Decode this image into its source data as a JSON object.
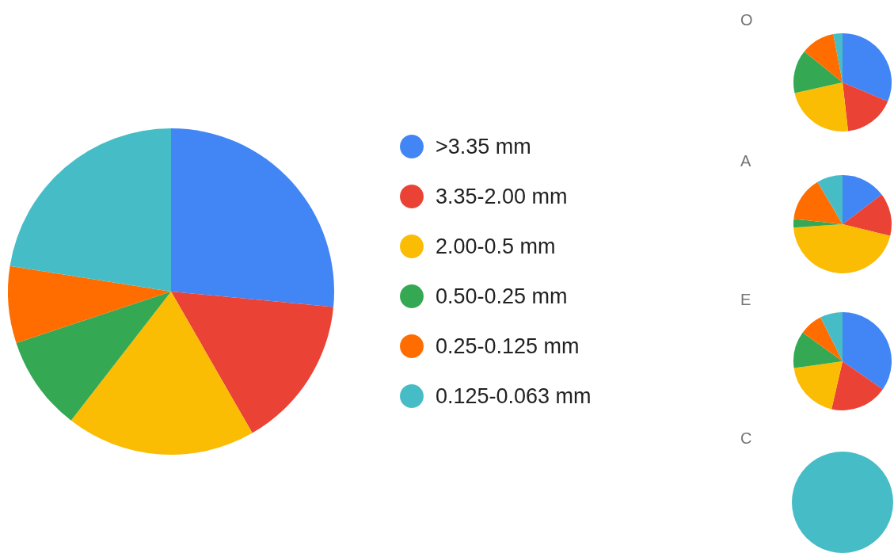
{
  "chart_data": [
    {
      "type": "pie",
      "categories": [
        ">3.35 mm",
        "3.35-2.00 mm",
        "2.00-0.5 mm",
        "0.50-0.25 mm",
        "0.25-0.125 mm",
        "0.125-0.063 mm"
      ],
      "values": [
        26.5,
        15.2,
        18.8,
        9.4,
        7.6,
        22.5
      ],
      "colors": [
        "#4285f4",
        "#ea4335",
        "#fbbc04",
        "#34a853",
        "#ff6d01",
        "#46bdc6"
      ],
      "legend": "right"
    },
    {
      "type": "pie",
      "title": "O",
      "categories": [
        null,
        null,
        null,
        null,
        null,
        null
      ],
      "values": [
        31.3,
        16.9,
        23.3,
        14.3,
        11.2,
        3.0
      ],
      "colors": [
        "#4285f4",
        "#ea4335",
        "#fbbc04",
        "#34a853",
        "#ff6d01",
        "#46bdc6"
      ]
    },
    {
      "type": "pie",
      "title": "A",
      "categories": [
        null,
        null,
        null,
        null,
        null,
        null
      ],
      "values": [
        14.7,
        14.1,
        45.1,
        2.8,
        14.8,
        8.5
      ],
      "colors": [
        "#4285f4",
        "#ea4335",
        "#fbbc04",
        "#34a853",
        "#ff6d01",
        "#46bdc6"
      ]
    },
    {
      "type": "pie",
      "title": "E",
      "categories": [
        null,
        null,
        null,
        null,
        null,
        null
      ],
      "values": [
        34.7,
        18.9,
        19.2,
        12.1,
        7.7,
        7.4
      ],
      "colors": [
        "#4285f4",
        "#ea4335",
        "#fbbc04",
        "#34a853",
        "#ff6d01",
        "#46bdc6"
      ]
    },
    {
      "type": "pie",
      "title": "C",
      "categories": [
        null,
        null,
        null,
        null,
        null,
        null
      ],
      "values": [
        0,
        0,
        0,
        0,
        0,
        100
      ],
      "colors": [
        "#4285f4",
        "#ea4335",
        "#fbbc04",
        "#34a853",
        "#ff6d01",
        "#46bdc6"
      ]
    }
  ]
}
